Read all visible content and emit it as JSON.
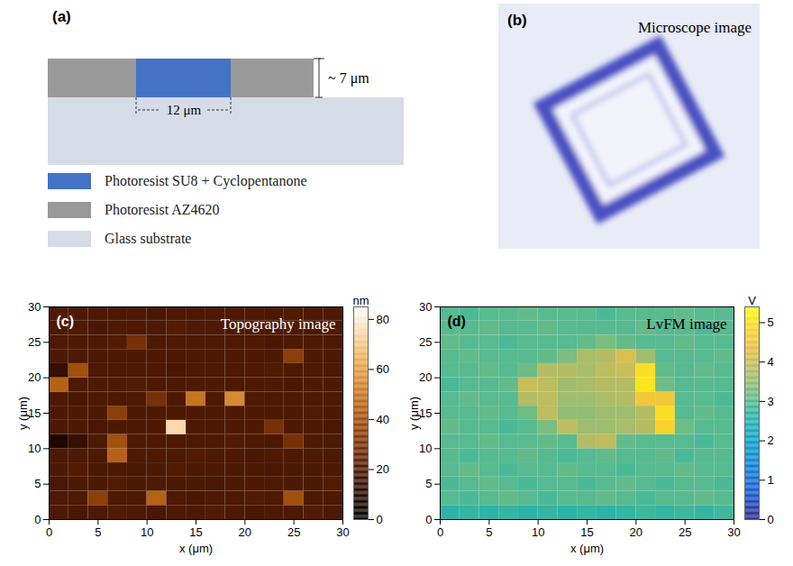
{
  "diagram": {
    "label": "(a)",
    "height_label": "~ 7 μm",
    "width_label": "12 μm",
    "legend": [
      {
        "text": "Photoresist SU8 + Cyclopentanone",
        "color": "#4472c4"
      },
      {
        "text": "Photoresist AZ4620",
        "color": "#999999"
      },
      {
        "text": "Glass substrate",
        "color": "#d6dce7"
      }
    ]
  },
  "image": {
    "label": "(b)",
    "title": "Microscope image"
  },
  "chart_data": [
    {
      "type": "heatmap",
      "panel_label": "(c)",
      "title": "Topography image",
      "x_label": "x (μm)",
      "y_label": "y (μm)",
      "xlim": [
        0,
        30
      ],
      "ylim": [
        0,
        30
      ],
      "xticks": [
        0,
        5,
        10,
        15,
        20,
        25,
        30
      ],
      "yticks": [
        0,
        5,
        10,
        15,
        20,
        25,
        30
      ],
      "z": [
        [
          20,
          19,
          20,
          21,
          20,
          19,
          20,
          20,
          21,
          20,
          19,
          20,
          20,
          21,
          20
        ],
        [
          20,
          20,
          35,
          20,
          20,
          45,
          20,
          19,
          20,
          20,
          21,
          20,
          40,
          20,
          20
        ],
        [
          19,
          20,
          20,
          21,
          20,
          20,
          20,
          20,
          19,
          20,
          20,
          20,
          20,
          20,
          21
        ],
        [
          20,
          21,
          20,
          20,
          19,
          20,
          21,
          20,
          20,
          20,
          20,
          19,
          20,
          20,
          20
        ],
        [
          20,
          20,
          20,
          45,
          20,
          20,
          20,
          21,
          20,
          20,
          19,
          20,
          20,
          20,
          20
        ],
        [
          8,
          14,
          20,
          40,
          20,
          20,
          20,
          20,
          20,
          21,
          20,
          20,
          30,
          20,
          20
        ],
        [
          20,
          20,
          19,
          20,
          20,
          20,
          75,
          20,
          20,
          20,
          20,
          30,
          20,
          20,
          19
        ],
        [
          20,
          20,
          20,
          35,
          20,
          20,
          20,
          20,
          20,
          20,
          20,
          20,
          20,
          21,
          20
        ],
        [
          20,
          19,
          20,
          20,
          20,
          30,
          20,
          50,
          20,
          55,
          20,
          20,
          20,
          20,
          20
        ],
        [
          45,
          20,
          20,
          20,
          21,
          20,
          20,
          20,
          20,
          20,
          20,
          20,
          19,
          20,
          20
        ],
        [
          14,
          40,
          20,
          20,
          20,
          20,
          19,
          20,
          20,
          20,
          20,
          21,
          20,
          20,
          20
        ],
        [
          20,
          20,
          20,
          20,
          20,
          20,
          20,
          20,
          20,
          20,
          20,
          20,
          35,
          20,
          20
        ],
        [
          20,
          20,
          20,
          21,
          30,
          20,
          20,
          20,
          20,
          20,
          20,
          19,
          20,
          20,
          20
        ],
        [
          20,
          20,
          19,
          20,
          20,
          20,
          21,
          20,
          20,
          20,
          20,
          20,
          20,
          20,
          20
        ],
        [
          20,
          20,
          20,
          20,
          20,
          19,
          20,
          20,
          20,
          20,
          20,
          20,
          21,
          20,
          20
        ]
      ],
      "colorbar": {
        "label": "nm",
        "range": [
          0,
          85
        ],
        "ticks": [
          0,
          20,
          40,
          60,
          80
        ]
      }
    },
    {
      "type": "heatmap",
      "panel_label": "(d)",
      "title": "LvFM image",
      "x_label": "x (μm)",
      "y_label": "y (μm)",
      "xlim": [
        0,
        30
      ],
      "ylim": [
        0,
        30
      ],
      "xticks": [
        0,
        5,
        10,
        15,
        20,
        25,
        30
      ],
      "yticks": [
        0,
        5,
        10,
        15,
        20,
        25,
        30
      ],
      "z": [
        [
          2.6,
          2.7,
          2.6,
          2.7,
          2.6,
          2.7,
          2.6,
          2.7,
          2.6,
          2.7,
          2.8,
          2.7,
          2.8,
          2.7,
          2.8
        ],
        [
          3.0,
          2.9,
          3.0,
          3.1,
          3.0,
          2.9,
          3.0,
          3.0,
          3.1,
          3.0,
          2.9,
          3.0,
          3.0,
          3.1,
          3.0
        ],
        [
          2.9,
          3.0,
          3.1,
          3.0,
          2.9,
          3.0,
          3.0,
          2.9,
          3.0,
          3.1,
          3.0,
          2.9,
          3.0,
          3.0,
          2.9
        ],
        [
          3.0,
          3.1,
          3.0,
          2.9,
          3.0,
          3.0,
          3.1,
          3.0,
          3.0,
          2.9,
          3.0,
          3.0,
          3.1,
          3.0,
          3.0
        ],
        [
          3.0,
          2.9,
          3.0,
          3.0,
          3.1,
          3.0,
          2.9,
          3.0,
          3.1,
          3.0,
          3.0,
          3.1,
          2.9,
          3.0,
          3.0
        ],
        [
          3.0,
          3.0,
          3.1,
          3.0,
          3.0,
          3.1,
          3.0,
          3.8,
          3.9,
          3.1,
          3.0,
          3.0,
          3.0,
          2.9,
          3.0
        ],
        [
          3.1,
          3.0,
          3.0,
          2.9,
          3.0,
          3.3,
          3.9,
          3.6,
          3.6,
          3.7,
          3.8,
          4.8,
          3.2,
          3.0,
          3.0
        ],
        [
          3.0,
          3.0,
          3.1,
          3.0,
          3.2,
          3.9,
          3.5,
          3.5,
          3.6,
          3.6,
          3.8,
          5.0,
          3.0,
          3.1,
          3.0
        ],
        [
          3.0,
          3.1,
          3.0,
          3.0,
          3.8,
          3.9,
          3.6,
          3.6,
          3.7,
          3.8,
          4.6,
          4.6,
          3.0,
          3.0,
          2.9
        ],
        [
          2.9,
          3.0,
          3.0,
          3.1,
          4.0,
          3.9,
          3.6,
          3.7,
          3.8,
          3.8,
          5.1,
          3.2,
          3.0,
          3.0,
          3.0
        ],
        [
          3.0,
          3.0,
          3.1,
          3.0,
          3.2,
          3.8,
          3.8,
          3.7,
          3.9,
          4.0,
          5.0,
          3.1,
          3.0,
          3.1,
          3.0
        ],
        [
          3.0,
          3.1,
          3.0,
          3.0,
          3.0,
          3.1,
          3.3,
          3.7,
          3.8,
          4.2,
          3.6,
          3.0,
          3.0,
          3.0,
          3.1
        ],
        [
          3.1,
          3.0,
          3.0,
          2.9,
          3.0,
          3.0,
          3.0,
          3.1,
          3.3,
          3.1,
          3.0,
          3.0,
          3.1,
          3.0,
          3.0
        ],
        [
          3.0,
          3.0,
          3.1,
          3.0,
          3.0,
          3.1,
          3.0,
          3.0,
          3.0,
          3.0,
          3.1,
          3.0,
          3.0,
          2.9,
          3.0
        ],
        [
          3.0,
          2.9,
          3.0,
          3.0,
          3.1,
          3.0,
          3.0,
          3.0,
          2.9,
          3.0,
          3.0,
          3.0,
          3.1,
          3.0,
          3.0
        ]
      ],
      "colorbar": {
        "label": "V",
        "range": [
          0,
          5.4
        ],
        "ticks": [
          0,
          1,
          2,
          3,
          4,
          5
        ]
      }
    }
  ]
}
